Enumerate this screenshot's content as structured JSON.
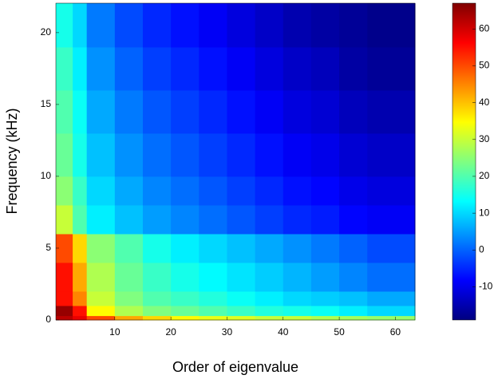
{
  "chart_data": {
    "type": "heatmap",
    "xlabel": "Order of eigenvalue",
    "ylabel": "Frequency (kHz)",
    "colormap": "jet",
    "x_edges": [
      -0.5,
      2.5,
      5,
      10,
      15,
      20,
      25,
      30,
      35,
      40,
      45,
      50,
      55,
      63.5
    ],
    "y_edges": [
      0,
      0.3,
      1,
      2,
      4,
      6,
      8,
      10,
      13,
      16,
      19,
      22.05
    ],
    "values": [
      [
        62,
        58,
        50,
        42,
        38,
        35,
        33,
        32,
        30,
        30,
        28,
        27,
        26
      ],
      [
        65,
        55,
        35,
        28,
        24,
        22,
        20,
        18,
        16,
        15,
        14,
        12,
        10
      ],
      [
        55,
        45,
        30,
        24,
        20,
        18,
        16,
        14,
        12,
        10,
        9,
        8,
        6
      ],
      [
        55,
        42,
        28,
        22,
        18,
        15,
        13,
        11,
        9,
        7,
        5,
        3,
        1
      ],
      [
        50,
        38,
        25,
        20,
        15,
        12,
        10,
        8,
        6,
        4,
        2,
        0,
        -2
      ],
      [
        30,
        20,
        12,
        8,
        5,
        3,
        1,
        -1,
        -3,
        -5,
        -6,
        -8,
        -9
      ],
      [
        25,
        18,
        10,
        6,
        3,
        1,
        -1,
        -3,
        -5,
        -7,
        -8,
        -10,
        -11
      ],
      [
        22,
        15,
        8,
        4,
        1,
        -1,
        -3,
        -5,
        -7,
        -9,
        -10,
        -12,
        -13
      ],
      [
        20,
        14,
        6,
        2,
        -1,
        -3,
        -5,
        -7,
        -9,
        -11,
        -12,
        -14,
        -15
      ],
      [
        18,
        12,
        4,
        0,
        -3,
        -5,
        -7,
        -9,
        -11,
        -13,
        -14,
        -16,
        -17
      ],
      [
        15,
        10,
        2,
        -2,
        -5,
        -7,
        -9,
        -11,
        -13,
        -15,
        -16,
        -17,
        -18
      ]
    ],
    "xlim": [
      -0.5,
      63.5
    ],
    "ylim": [
      0,
      22.05
    ],
    "xticks": [
      10,
      20,
      30,
      40,
      50,
      60
    ],
    "yticks": [
      0,
      5,
      10,
      15,
      20
    ],
    "clim": [
      -19,
      67
    ],
    "cticks": [
      -10,
      0,
      10,
      20,
      30,
      40,
      50,
      60
    ]
  }
}
